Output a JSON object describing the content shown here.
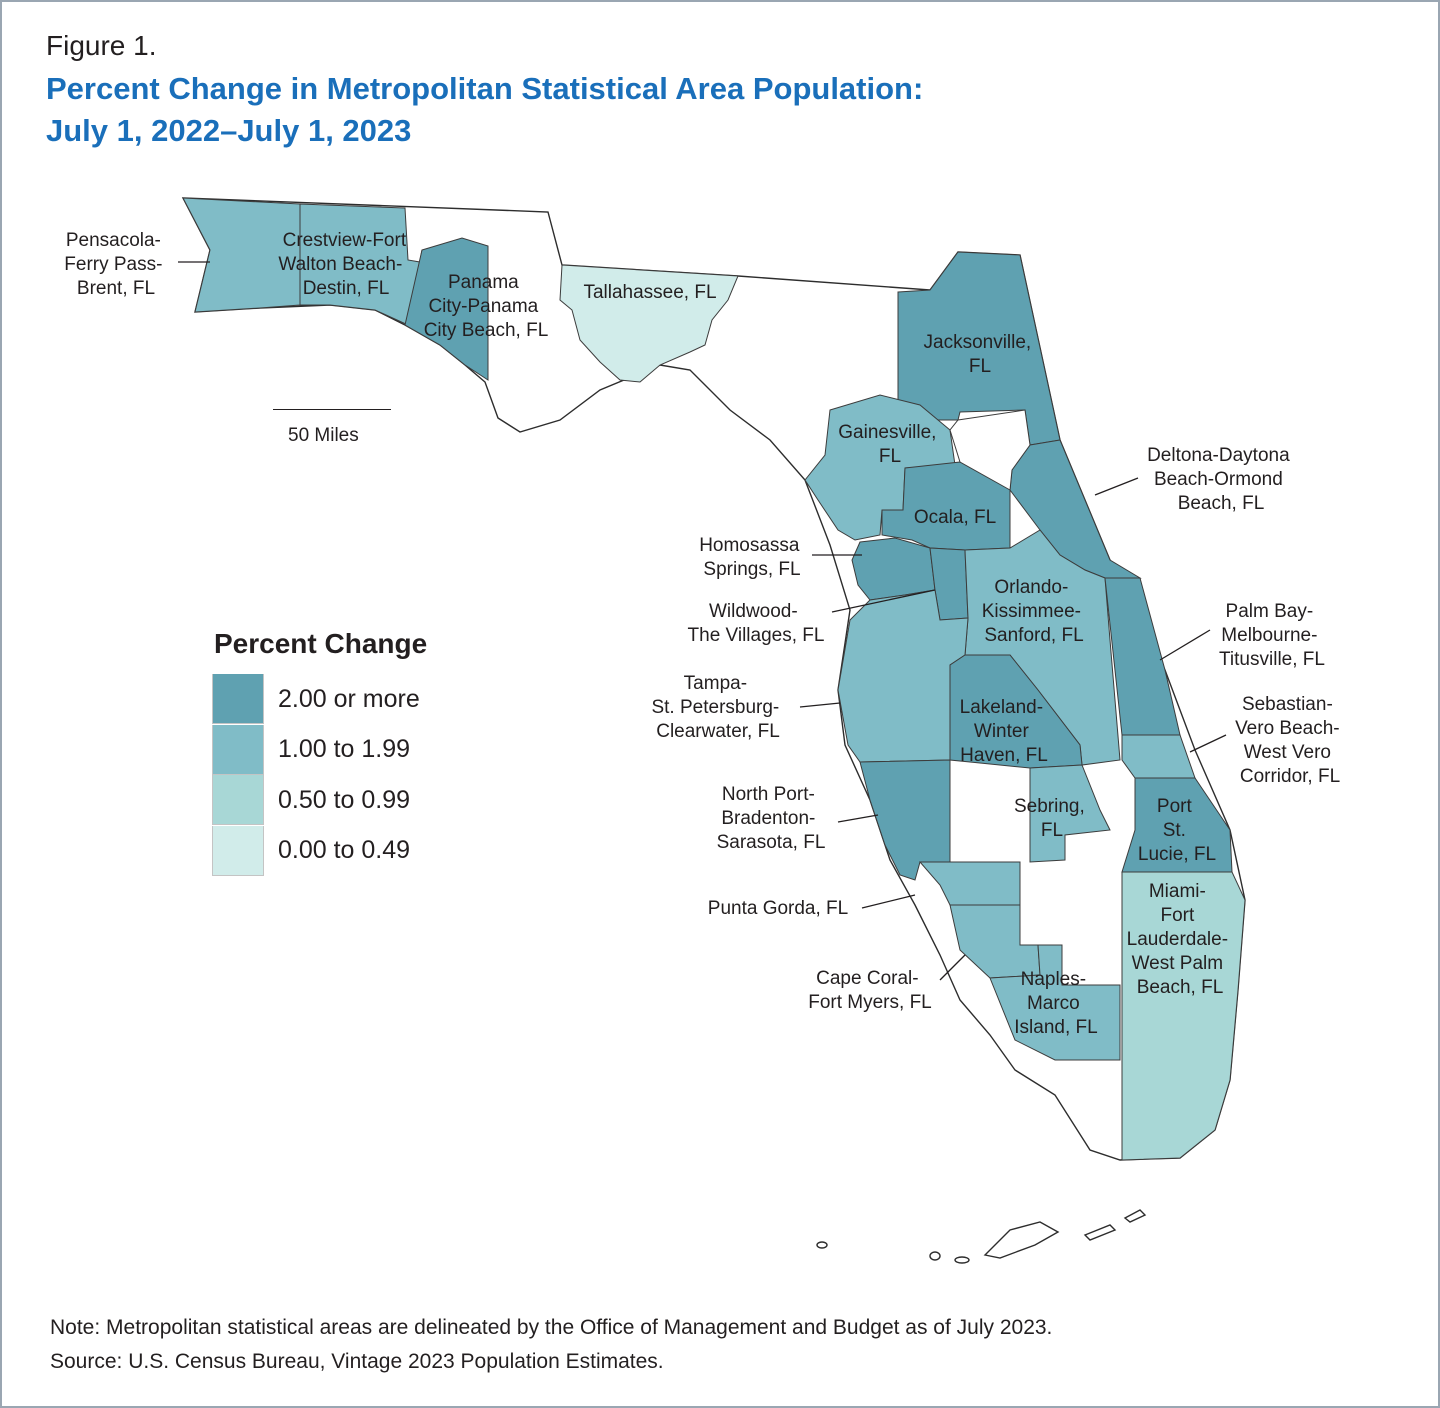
{
  "figure_label": "Figure 1.",
  "title_lines": [
    "Percent Change in Metropolitan Statistical Area Population:",
    "July 1, 2022–July 1, 2023"
  ],
  "scale_label": "50 Miles",
  "legend": {
    "title": "Percent Change",
    "items": [
      {
        "label": "2.00 or more",
        "color": "#5fa1b1"
      },
      {
        "label": "1.00 to 1.99",
        "color": "#80bcc7"
      },
      {
        "label": "0.50 to 0.99",
        "color": "#a8d7d6"
      },
      {
        "label": "0.00 to 0.49",
        "color": "#d1ecea"
      }
    ],
    "unclassified_color": "#ffffff"
  },
  "regions": [
    {
      "name": "Pensacola-Ferry Pass-Brent, FL",
      "category": "1.00 to 1.99"
    },
    {
      "name": "Crestview-Fort Walton Beach-Destin, FL",
      "category": "1.00 to 1.99"
    },
    {
      "name": "Panama City-Panama City Beach, FL",
      "category": "2.00 or more"
    },
    {
      "name": "Tallahassee, FL",
      "category": "0.00 to 0.49"
    },
    {
      "name": "Jacksonville, FL",
      "category": "2.00 or more"
    },
    {
      "name": "Gainesville, FL",
      "category": "1.00 to 1.99"
    },
    {
      "name": "Ocala, FL",
      "category": "2.00 or more"
    },
    {
      "name": "Deltona-Daytona Beach-Ormond Beach, FL",
      "category": "2.00 or more"
    },
    {
      "name": "Homosassa Springs, FL",
      "category": "2.00 or more"
    },
    {
      "name": "Wildwood-The Villages, FL",
      "category": "2.00 or more"
    },
    {
      "name": "Orlando-Kissimmee-Sanford, FL",
      "category": "1.00 to 1.99"
    },
    {
      "name": "Palm Bay-Melbourne-Titusville, FL",
      "category": "2.00 or more"
    },
    {
      "name": "Tampa-St. Petersburg-Clearwater, FL",
      "category": "1.00 to 1.99"
    },
    {
      "name": "Lakeland-Winter Haven, FL",
      "category": "2.00 or more"
    },
    {
      "name": "Sebastian-Vero Beach-West Vero Corridor, FL",
      "category": "1.00 to 1.99"
    },
    {
      "name": "North Port-Bradenton-Sarasota, FL",
      "category": "2.00 or more"
    },
    {
      "name": "Sebring, FL",
      "category": "1.00 to 1.99"
    },
    {
      "name": "Port St. Lucie, FL",
      "category": "2.00 or more"
    },
    {
      "name": "Punta Gorda, FL",
      "category": "1.00 to 1.99"
    },
    {
      "name": "Cape Coral-Fort Myers, FL",
      "category": "1.00 to 1.99"
    },
    {
      "name": "Naples-Marco Island, FL",
      "category": "1.00 to 1.99"
    },
    {
      "name": "Miami-Fort Lauderdale-West Palm Beach, FL",
      "category": "0.50 to 0.99"
    }
  ],
  "labels": {
    "pensacola": [
      "Pensacola-",
      "Ferry Pass-",
      "Brent, FL"
    ],
    "crestview": [
      "Crestview-Fort",
      "Walton Beach-",
      "Destin, FL"
    ],
    "panama": [
      "Panama",
      "City-Panama",
      "City Beach, FL"
    ],
    "tallahassee": [
      "Tallahassee, FL"
    ],
    "jacksonville": [
      "Jacksonville,",
      "FL"
    ],
    "gainesville": [
      "Gainesville,",
      "FL"
    ],
    "ocala": [
      "Ocala, FL"
    ],
    "deltona": [
      "Deltona-Daytona",
      "Beach-Ormond",
      "Beach, FL"
    ],
    "homosassa": [
      "Homosassa",
      "Springs, FL"
    ],
    "wildwood": [
      "Wildwood-",
      "The Villages, FL"
    ],
    "orlando": [
      "Orlando-",
      "Kissimmee-",
      "Sanford, FL"
    ],
    "palmbay": [
      "Palm Bay-",
      "Melbourne-",
      "Titusville, FL"
    ],
    "tampa": [
      "Tampa-",
      "St. Petersburg-",
      "Clearwater, FL"
    ],
    "lakeland": [
      "Lakeland-",
      "Winter",
      "Haven, FL"
    ],
    "sebastian": [
      "Sebastian-",
      "Vero Beach-",
      "West Vero",
      "Corridor, FL"
    ],
    "northport": [
      "North Port-",
      "Bradenton-",
      "Sarasota, FL"
    ],
    "sebring": [
      "Sebring,",
      "FL"
    ],
    "portstlucie": [
      "Port",
      "St.",
      "Lucie, FL"
    ],
    "puntagorda": [
      "Punta Gorda, FL"
    ],
    "capecoral": [
      "Cape Coral-",
      "Fort Myers, FL"
    ],
    "naples": [
      "Naples-",
      "Marco",
      "Island, FL"
    ],
    "miami": [
      "Miami-",
      "Fort",
      "Lauderdale-",
      "West Palm",
      "Beach, FL"
    ]
  },
  "note": "Note: Metropolitan statistical areas are delineated by the Office of Management and Budget as of July 2023.",
  "source": "Source: U.S. Census Bureau, Vintage 2023 Population Estimates."
}
